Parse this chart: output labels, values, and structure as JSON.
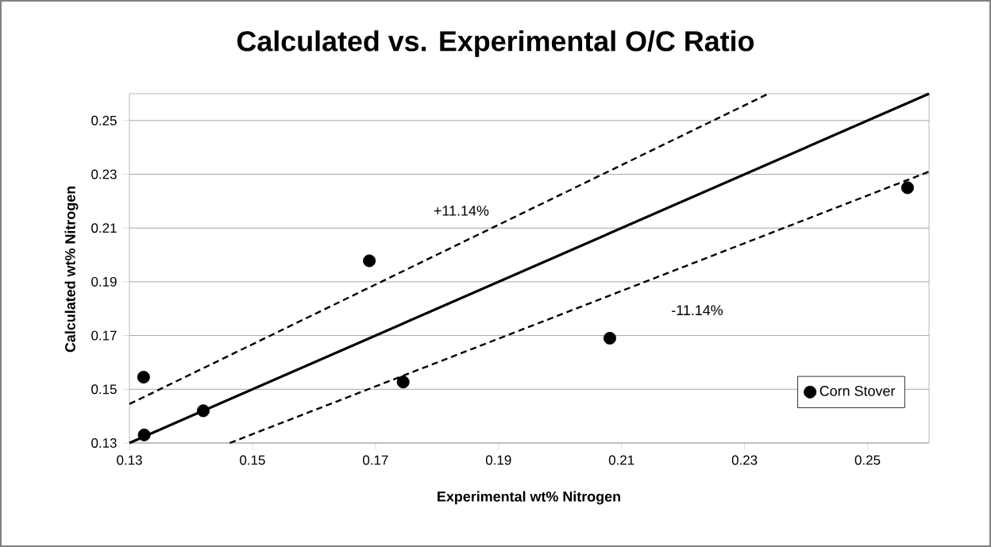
{
  "chart_data": {
    "type": "scatter",
    "title": "Calculated vs. Experimental O/C Ratio",
    "xlabel": "Experimental wt% Nitrogen",
    "ylabel": "Calculated wt% Nitrogen",
    "series": [
      {
        "name": "Corn Stover",
        "color": "#000000",
        "marker": "circle",
        "x": [
          0.1323,
          0.1324,
          0.142,
          0.169,
          0.1745,
          0.2081,
          0.2565
        ],
        "values": [
          0.1545,
          0.133,
          0.142,
          0.1978,
          0.1527,
          0.169,
          0.225
        ]
      },
      {
        "type": "line",
        "color": "#000000",
        "marker": "none",
        "line_style": "solid",
        "x": [
          0.13,
          0.26
        ],
        "values": [
          0.13,
          0.26
        ]
      },
      {
        "type": "line",
        "color": "#000000",
        "marker": "none",
        "line_style": "dashed",
        "x": [
          0.13,
          0.2339
        ],
        "values": [
          0.1445,
          0.26
        ]
      },
      {
        "type": "line",
        "color": "#000000",
        "marker": "none",
        "line_style": "dashed",
        "x": [
          0.1463,
          0.26
        ],
        "values": [
          0.13,
          0.231
        ]
      }
    ],
    "annotations": [
      "+11.14%",
      "-11.14%"
    ],
    "xlim": [
      0.13,
      0.26
    ],
    "ylim": [
      0.13,
      0.26
    ],
    "xticks": [
      0.13,
      0.15,
      0.17,
      0.19,
      0.21,
      0.23,
      0.25
    ],
    "yticks": [
      0.13,
      0.15,
      0.17,
      0.19,
      0.21,
      0.23,
      0.25
    ],
    "grid": "y",
    "legend": "bottom right"
  }
}
